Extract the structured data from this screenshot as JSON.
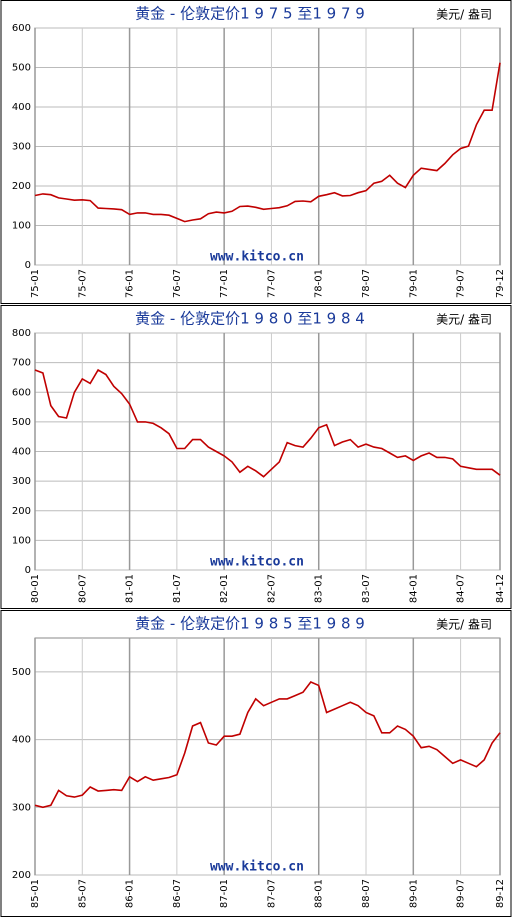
{
  "chart_data": [
    {
      "type": "line",
      "title": "黄金  - 伦敦定价1 9 7 5 至1 9 7 9",
      "unit": "美元/ 盎司",
      "annotation": "www.kitco.cn",
      "color": "#c00000",
      "grid": true,
      "x": [
        0,
        1,
        2,
        3,
        4,
        5,
        6,
        7,
        8,
        9,
        10,
        11,
        12,
        13,
        14,
        15,
        16,
        17,
        18,
        19,
        20,
        21,
        22,
        23,
        24,
        25,
        26,
        27,
        28,
        29,
        30,
        31,
        32,
        33,
        34,
        35,
        36,
        37,
        38,
        39,
        40,
        41,
        42,
        43,
        44,
        45,
        46,
        47,
        48,
        49,
        50,
        51,
        52,
        53,
        54,
        55,
        56,
        57,
        58,
        59
      ],
      "values": [
        176,
        180,
        178,
        170,
        167,
        164,
        165,
        163,
        144,
        143,
        142,
        140,
        128,
        132,
        132,
        128,
        128,
        126,
        118,
        110,
        114,
        117,
        130,
        134,
        132,
        136,
        148,
        149,
        146,
        141,
        143,
        145,
        150,
        161,
        162,
        160,
        174,
        178,
        183,
        175,
        176,
        183,
        188,
        207,
        212,
        227,
        207,
        196,
        227,
        245,
        242,
        239,
        257,
        279,
        295,
        301,
        355,
        392,
        392,
        512
      ],
      "xlim": [
        0,
        59
      ],
      "ylim": [
        0,
        600
      ],
      "yticks": [
        0,
        100,
        200,
        300,
        400,
        500,
        600
      ],
      "xticks": [
        {
          "value": 0,
          "label": "75-01"
        },
        {
          "value": 6,
          "label": "75-07"
        },
        {
          "value": 12,
          "label": "76-01"
        },
        {
          "value": 18,
          "label": "76-07"
        },
        {
          "value": 24,
          "label": "77-01"
        },
        {
          "value": 30,
          "label": "77-07"
        },
        {
          "value": 36,
          "label": "78-01"
        },
        {
          "value": 42,
          "label": "78-07"
        },
        {
          "value": 48,
          "label": "79-01"
        },
        {
          "value": 54,
          "label": "79-07"
        },
        {
          "value": 59,
          "label": "79-12"
        }
      ]
    },
    {
      "type": "line",
      "title": "黄金  - 伦敦定价1 9 8 0 至1 9 8 4",
      "unit": "美元/ 盎司",
      "annotation": "www.kitco.cn",
      "color": "#c00000",
      "grid": true,
      "x": [
        0,
        1,
        2,
        3,
        4,
        5,
        6,
        7,
        8,
        9,
        10,
        11,
        12,
        13,
        14,
        15,
        16,
        17,
        18,
        19,
        20,
        21,
        22,
        23,
        24,
        25,
        26,
        27,
        28,
        29,
        30,
        31,
        32,
        33,
        34,
        35,
        36,
        37,
        38,
        39,
        40,
        41,
        42,
        43,
        44,
        45,
        46,
        47,
        48,
        49,
        50,
        51,
        52,
        53,
        54,
        55,
        56,
        57,
        58,
        59
      ],
      "values": [
        675,
        665,
        555,
        518,
        513,
        600,
        645,
        630,
        675,
        660,
        620,
        595,
        560,
        500,
        500,
        495,
        480,
        460,
        410,
        410,
        440,
        440,
        415,
        400,
        385,
        365,
        330,
        350,
        335,
        315,
        340,
        365,
        430,
        420,
        415,
        445,
        480,
        490,
        420,
        432,
        440,
        415,
        425,
        415,
        410,
        395,
        380,
        385,
        370,
        385,
        395,
        380,
        380,
        375,
        350,
        345,
        340,
        340,
        340,
        320
      ],
      "xlim": [
        0,
        59
      ],
      "ylim": [
        0,
        800
      ],
      "yticks": [
        0,
        100,
        200,
        300,
        400,
        500,
        600,
        700,
        800
      ],
      "xticks": [
        {
          "value": 0,
          "label": "80-01"
        },
        {
          "value": 6,
          "label": "80-07"
        },
        {
          "value": 12,
          "label": "81-01"
        },
        {
          "value": 18,
          "label": "81-07"
        },
        {
          "value": 24,
          "label": "82-01"
        },
        {
          "value": 30,
          "label": "82-07"
        },
        {
          "value": 36,
          "label": "83-01"
        },
        {
          "value": 42,
          "label": "83-07"
        },
        {
          "value": 48,
          "label": "84-01"
        },
        {
          "value": 54,
          "label": "84-07"
        },
        {
          "value": 59,
          "label": "84-12"
        }
      ]
    },
    {
      "type": "line",
      "title": "黄金  - 伦敦定价1 9 8 5 至1 9 8 9",
      "unit": "美元/ 盎司",
      "annotation": "www.kitco.cn",
      "color": "#c00000",
      "grid": true,
      "x": [
        0,
        1,
        2,
        3,
        4,
        5,
        6,
        7,
        8,
        9,
        10,
        11,
        12,
        13,
        14,
        15,
        16,
        17,
        18,
        19,
        20,
        21,
        22,
        23,
        24,
        25,
        26,
        27,
        28,
        29,
        30,
        31,
        32,
        33,
        34,
        35,
        36,
        37,
        38,
        39,
        40,
        41,
        42,
        43,
        44,
        45,
        46,
        47,
        48,
        49,
        50,
        51,
        52,
        53,
        54,
        55,
        56,
        57,
        58,
        59
      ],
      "values": [
        303,
        300,
        303,
        325,
        317,
        315,
        318,
        330,
        324,
        325,
        326,
        325,
        345,
        338,
        345,
        340,
        342,
        344,
        348,
        380,
        420,
        425,
        395,
        392,
        405,
        405,
        408,
        440,
        460,
        450,
        455,
        460,
        460,
        465,
        470,
        485,
        480,
        440,
        445,
        450,
        455,
        450,
        440,
        435,
        410,
        410,
        420,
        415,
        405,
        388,
        390,
        385,
        375,
        365,
        370,
        365,
        360,
        370,
        395,
        410
      ],
      "xlim": [
        0,
        59
      ],
      "ylim": [
        200,
        550
      ],
      "yticks": [
        200,
        300,
        400,
        500
      ],
      "xticks": [
        {
          "value": 0,
          "label": "85-01"
        },
        {
          "value": 6,
          "label": "85-07"
        },
        {
          "value": 12,
          "label": "86-01"
        },
        {
          "value": 18,
          "label": "86-07"
        },
        {
          "value": 24,
          "label": "87-01"
        },
        {
          "value": 30,
          "label": "87-07"
        },
        {
          "value": 36,
          "label": "88-01"
        },
        {
          "value": 42,
          "label": "88-07"
        },
        {
          "value": 48,
          "label": "89-01"
        },
        {
          "value": 54,
          "label": "89-07"
        },
        {
          "value": 59,
          "label": "89-12"
        }
      ]
    }
  ]
}
